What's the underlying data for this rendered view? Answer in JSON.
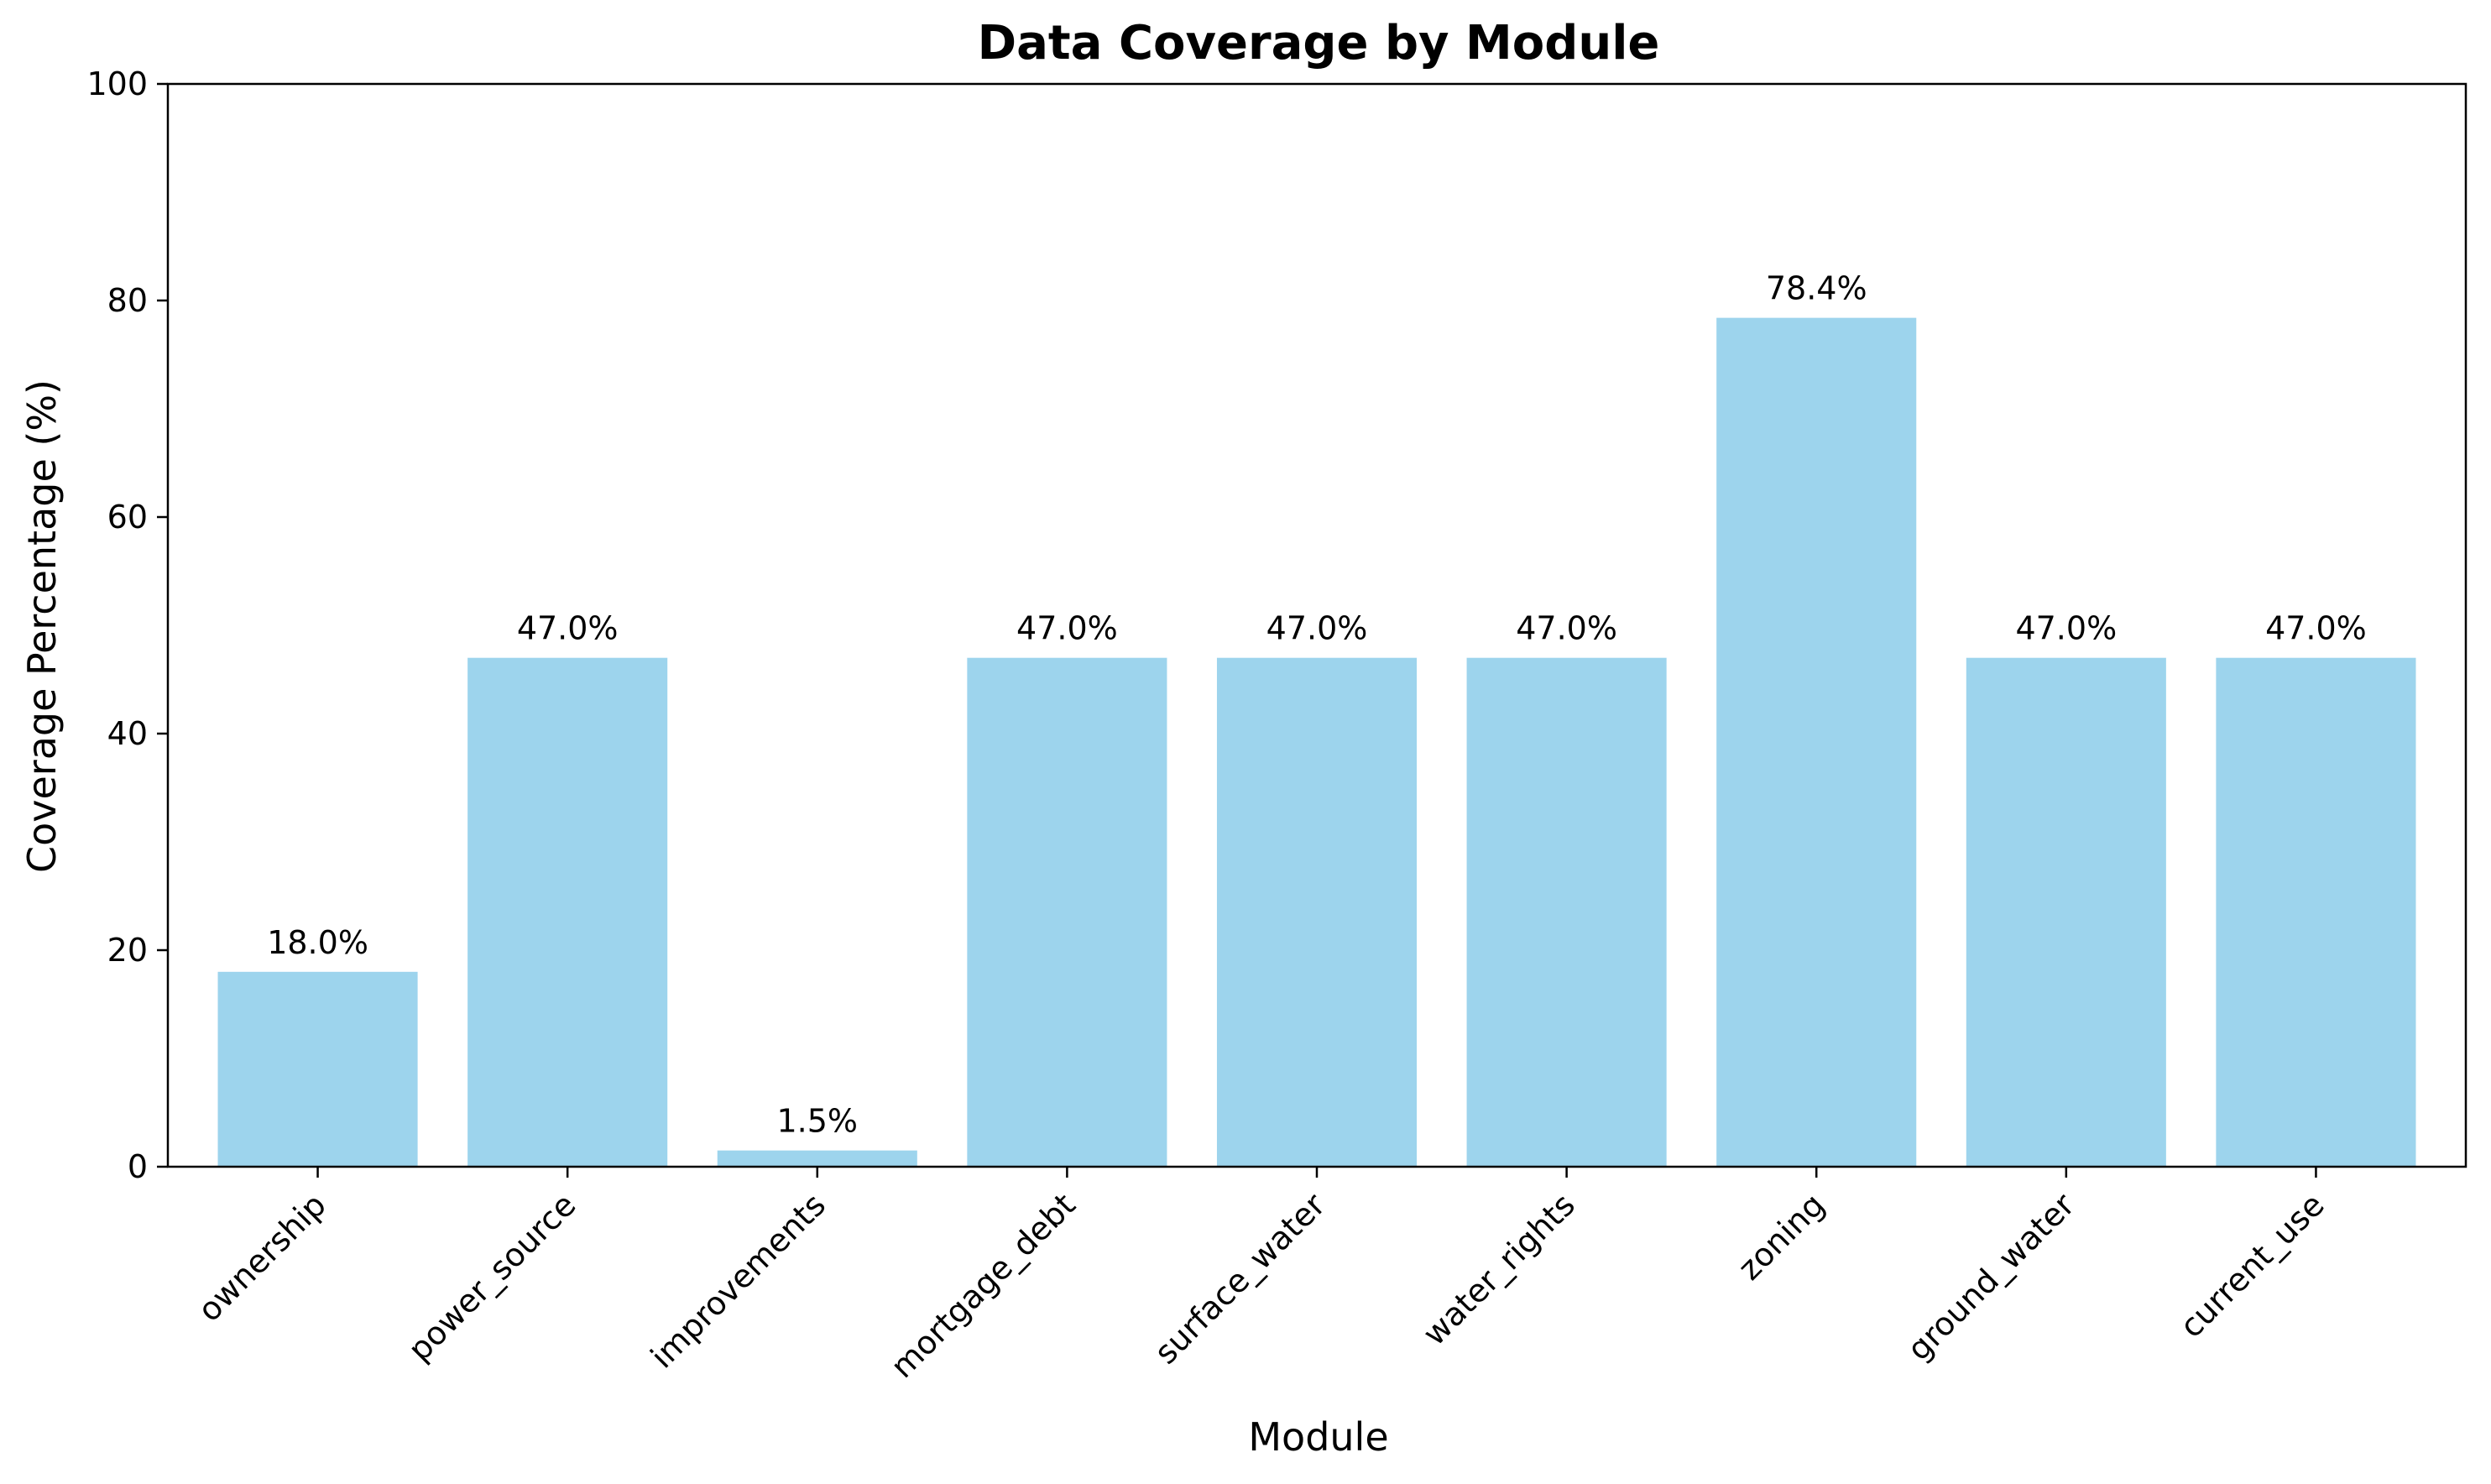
{
  "chart_data": {
    "type": "bar",
    "title": "Data Coverage by Module",
    "xlabel": "Module",
    "ylabel": "Coverage Percentage (%)",
    "ylim": [
      0,
      100
    ],
    "yticks": [
      0,
      20,
      40,
      60,
      80,
      100
    ],
    "categories": [
      "ownership",
      "power_source",
      "improvements",
      "mortgage_debt",
      "surface_water",
      "water_rights",
      "zoning",
      "ground_water",
      "current_use"
    ],
    "values": [
      18.0,
      47.0,
      1.5,
      47.0,
      47.0,
      47.0,
      78.4,
      47.0,
      47.0
    ],
    "data_labels": [
      "18.0%",
      "47.0%",
      "1.5%",
      "47.0%",
      "47.0%",
      "47.0%",
      "78.4%",
      "47.0%",
      "47.0%"
    ],
    "bar_color": "#9dd4ed",
    "grid": false,
    "legend": "none"
  }
}
